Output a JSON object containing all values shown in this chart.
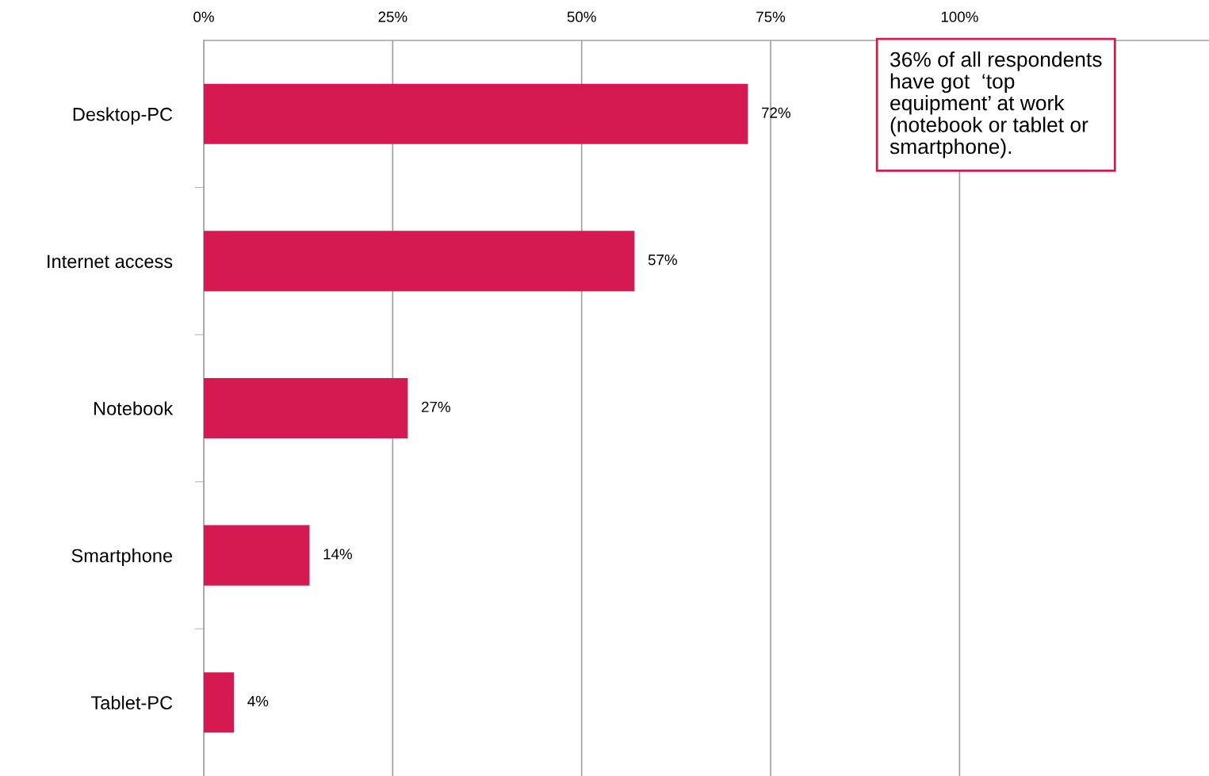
{
  "chart_data": {
    "type": "bar",
    "orientation": "horizontal",
    "categories": [
      "Desktop-PC",
      "Internet access",
      "Notebook",
      "Smartphone",
      "Tablet-PC"
    ],
    "values": [
      72,
      57,
      27,
      14,
      4
    ],
    "value_labels": [
      "72%",
      "57%",
      "27%",
      "14%",
      "4%"
    ],
    "color": "#d51a52",
    "xlim": [
      0,
      133
    ],
    "xticks": [
      {
        "value": 0,
        "label": "0%"
      },
      {
        "value": 25,
        "label": "25%"
      },
      {
        "value": 50,
        "label": "50%"
      },
      {
        "value": 75,
        "label": "75%"
      },
      {
        "value": 100,
        "label": "100%"
      }
    ],
    "grid": "x",
    "legend": false,
    "annotations": [
      "36% of all respondents\nhave got  ‘top\nequipment’ at work\n(notebook or tablet or\nsmartphone)."
    ]
  }
}
